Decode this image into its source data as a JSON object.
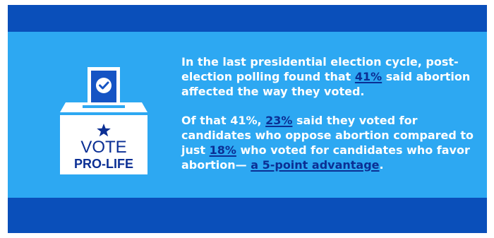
{
  "ballot": {
    "line1": "VOTE",
    "line2": "PRO-LIFE",
    "icons": [
      "checkmark-icon",
      "star-icon"
    ]
  },
  "paragraph1": {
    "before": "In the last presidential election cycle, post-election polling found that ",
    "highlight": "41%",
    "after": " said abortion affected the way they voted."
  },
  "paragraph2": {
    "before": "Of that 41%, ",
    "highlight1": "23%",
    "middle1": " said they voted for candidates who oppose abortion compared to just ",
    "highlight2": "18%",
    "middle2": " who voted for candidates who favor abortion— ",
    "highlight3": "a 5-point advantage",
    "after": "."
  },
  "colors": {
    "band": "#0a4fba",
    "panel": "#2da8f2",
    "text": "#ffffff",
    "highlight": "#0b2f94"
  }
}
